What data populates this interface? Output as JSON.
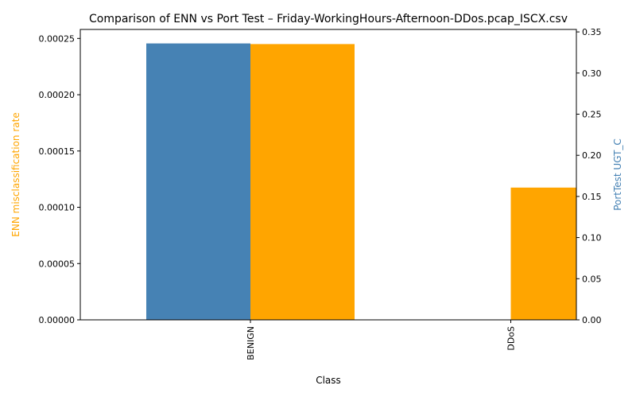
{
  "chart_data": {
    "type": "bar",
    "title": "Comparison of ENN vs Port Test – Friday-WorkingHours-Afternoon-DDos.pcap_ISCX.csv",
    "xlabel": "Class",
    "categories": [
      "BENIGN",
      "DDoS"
    ],
    "y_left": {
      "label": "ENN misclassification rate",
      "color": "#FFA500",
      "ylim": [
        0,
        0.000258
      ],
      "ticks": [
        0,
        5e-05,
        0.0001,
        0.00015,
        0.0002,
        0.00025
      ],
      "tick_labels": [
        "0.00000",
        "0.00005",
        "0.00010",
        "0.00015",
        "0.00020",
        "0.00025"
      ]
    },
    "y_right": {
      "label": "PortTest UGT_C",
      "color": "#4682B4",
      "ylim": [
        0,
        0.353
      ],
      "ticks": [
        0,
        0.05,
        0.1,
        0.15,
        0.2,
        0.25,
        0.3,
        0.35
      ],
      "tick_labels": [
        "0.00",
        "0.05",
        "0.10",
        "0.15",
        "0.20",
        "0.25",
        "0.30",
        "0.35"
      ]
    },
    "series": [
      {
        "axis": "right",
        "color": "#4682B4",
        "values": [
          0.336,
          0
        ]
      },
      {
        "axis": "left",
        "color": "#FFA500",
        "values": [
          0.000245,
          0.0001175
        ]
      }
    ],
    "grid": false,
    "legend": "none"
  }
}
